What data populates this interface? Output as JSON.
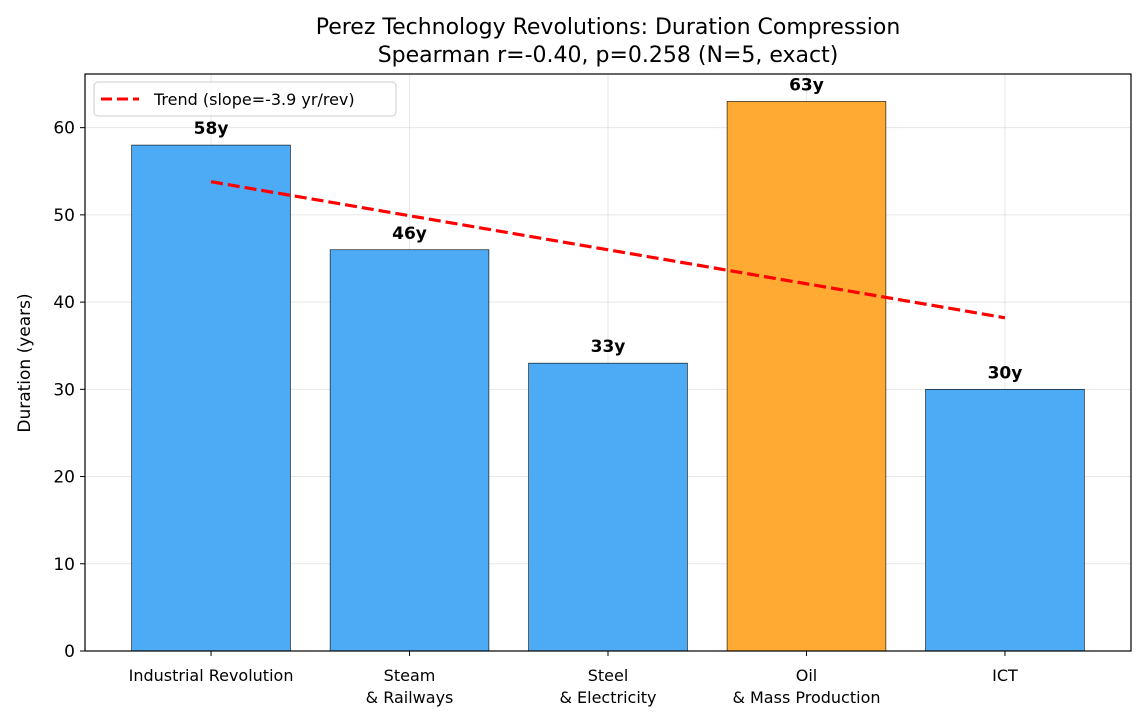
{
  "chart_data": {
    "type": "bar",
    "title": "Perez Technology Revolutions: Duration Compression",
    "subtitle": "Spearman r=-0.40, p=0.258 (N=5, exact)",
    "xlabel": "",
    "ylabel": "Duration (years)",
    "categories": [
      "Industrial Revolution",
      "Steam\n& Railways",
      "Steel\n& Electricity",
      "Oil\n& Mass Production",
      "ICT"
    ],
    "values": [
      58,
      46,
      33,
      63,
      30
    ],
    "data_labels": [
      "58y",
      "46y",
      "33y",
      "63y",
      "30y"
    ],
    "bar_colors": [
      "#4daaf5",
      "#4daaf5",
      "#4daaf5",
      "#ffab33",
      "#4daaf5"
    ],
    "ylim": [
      0,
      66.15
    ],
    "yticks": [
      0,
      10,
      20,
      30,
      40,
      50,
      60
    ],
    "grid": true,
    "trend": {
      "name": "Trend (slope=-3.9 yr/rev)",
      "start": 53.8,
      "end": 38.2,
      "color": "#ff0000",
      "style": "dashed"
    },
    "legend_position": "top-left"
  }
}
